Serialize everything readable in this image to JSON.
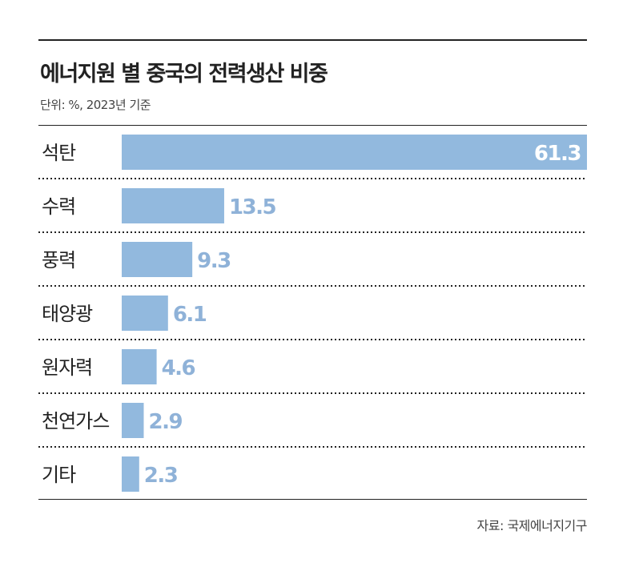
{
  "chart_data": {
    "type": "bar",
    "orientation": "horizontal",
    "title": "에너지원 별 중국의 전력생산 비중",
    "subtitle": "단위: %, 2023년 기준",
    "source": "자료: 국제에너지기구",
    "categories": [
      "석탄",
      "수력",
      "풍력",
      "태양광",
      "원자력",
      "천연가스",
      "기타"
    ],
    "values": [
      61.3,
      13.5,
      9.3,
      6.1,
      4.6,
      2.9,
      2.3
    ],
    "value_labels": [
      "61.3",
      "13.5",
      "9.3",
      "6.1",
      "4.6",
      "2.9",
      "2.3"
    ],
    "xlim": [
      0,
      61.3
    ],
    "bar_color": "#92b9de",
    "label_color": "#8fb2d8"
  }
}
